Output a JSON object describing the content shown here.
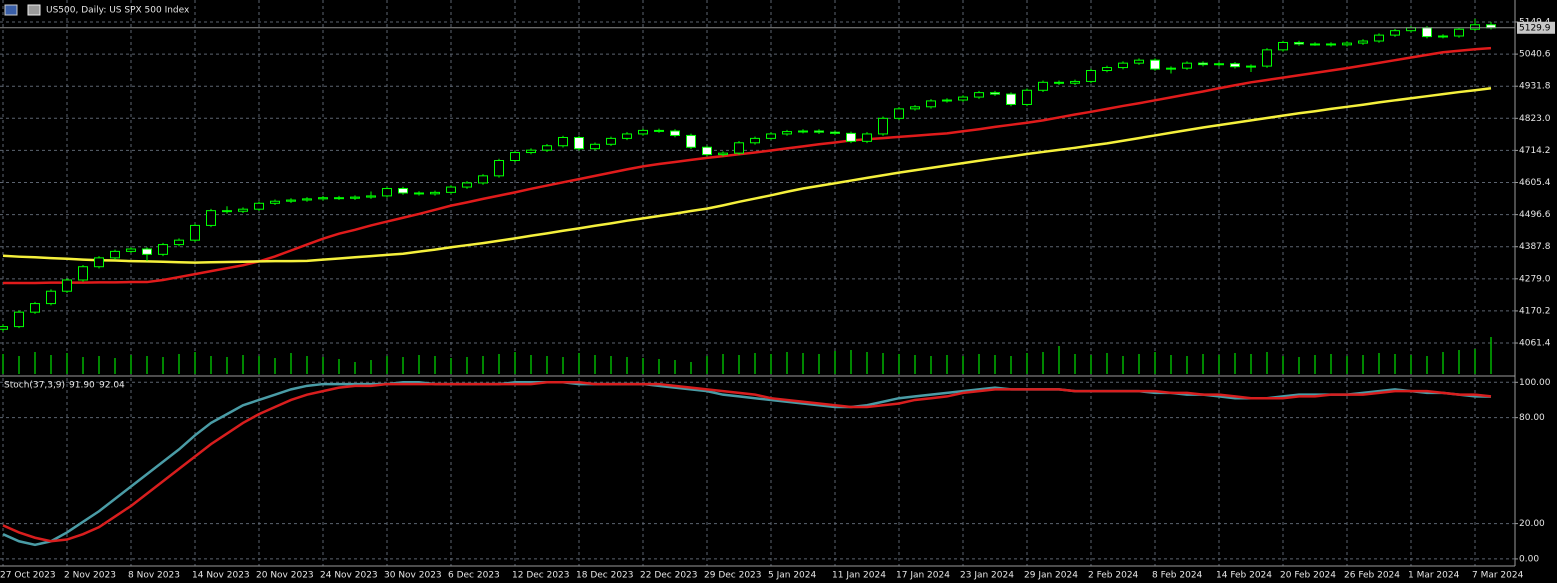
{
  "chart_data": [
    {
      "type": "candlestick",
      "title": "US500, Daily: US SPX 500 Index",
      "categories": [
        "27 Oct 2023",
        null,
        null,
        null,
        "2 Nov 2023",
        null,
        null,
        null,
        "8 Nov 2023",
        null,
        null,
        null,
        "14 Nov 2023",
        null,
        null,
        null,
        "20 Nov 2023",
        null,
        null,
        null,
        "24 Nov 2023",
        null,
        null,
        null,
        "30 Nov 2023",
        null,
        null,
        null,
        "6 Dec 2023",
        null,
        null,
        null,
        "12 Dec 2023",
        null,
        null,
        null,
        "18 Dec 2023",
        null,
        null,
        null,
        "22 Dec 2023",
        null,
        null,
        null,
        "29 Dec 2023",
        null,
        null,
        null,
        "5 Jan 2024",
        null,
        null,
        null,
        "11 Jan 2024",
        null,
        null,
        null,
        "17 Jan 2024",
        null,
        null,
        null,
        "23 Jan 2024",
        null,
        null,
        null,
        "29 Jan 2024",
        null,
        null,
        null,
        "2 Feb 2024",
        null,
        null,
        null,
        "8 Feb 2024",
        null,
        null,
        null,
        "14 Feb 2024",
        null,
        null,
        null,
        "20 Feb 2024",
        null,
        null,
        null,
        "26 Feb 2024",
        null,
        null,
        null,
        "1 Mar 2024",
        null,
        null,
        null,
        "7 Mar 2024",
        null
      ],
      "open": [
        4108,
        4117,
        4166,
        4195,
        4237,
        4275,
        4320,
        4350,
        4372,
        4380,
        4362,
        4395,
        4410,
        4460,
        4510,
        4508,
        4515,
        4535,
        4542,
        4546,
        4550,
        4554,
        4552,
        4556,
        4560,
        4585,
        4570,
        4567,
        4572,
        4590,
        4604,
        4628,
        4680,
        4707,
        4715,
        4730,
        4758,
        4720,
        4735,
        4755,
        4770,
        4782,
        4780,
        4765,
        4725,
        4700,
        4705,
        4740,
        4755,
        4770,
        4778,
        4780,
        4776,
        4772,
        4745,
        4770,
        4823,
        4855,
        4862,
        4882,
        4885,
        4895,
        4910,
        4905,
        4870,
        4918,
        4945,
        4942,
        4948,
        4985,
        4995,
        5010,
        5020,
        4990,
        4993,
        5010,
        5005,
        5008,
        4998,
        5000,
        5055,
        5080,
        5075,
        5075,
        5072,
        5078,
        5085,
        5105,
        5120,
        5130,
        5100,
        5102,
        5125,
        5140
      ],
      "high": [
        4125,
        4172,
        4201,
        4243,
        4281,
        4326,
        4356,
        4378,
        4386,
        4386,
        4401,
        4416,
        4466,
        4516,
        4525,
        4521,
        4541,
        4548,
        4552,
        4556,
        4560,
        4560,
        4562,
        4575,
        4591,
        4591,
        4576,
        4578,
        4596,
        4610,
        4634,
        4686,
        4713,
        4721,
        4736,
        4764,
        4764,
        4741,
        4761,
        4776,
        4788,
        4788,
        4786,
        4771,
        4731,
        4711,
        4746,
        4761,
        4776,
        4784,
        4786,
        4786,
        4782,
        4778,
        4776,
        4829,
        4861,
        4868,
        4888,
        4891,
        4901,
        4916,
        4916,
        4911,
        4924,
        4951,
        4951,
        4954,
        4991,
        5001,
        5016,
        5026,
        5026,
        4999,
        5016,
        5016,
        5014,
        5014,
        5006,
        5061,
        5086,
        5086,
        5081,
        5081,
        5084,
        5091,
        5111,
        5126,
        5136,
        5136,
        5108,
        5131,
        5160,
        5150
      ],
      "low": [
        4100,
        4112,
        4160,
        4189,
        4231,
        4269,
        4314,
        4344,
        4366,
        4340,
        4356,
        4389,
        4404,
        4454,
        4500,
        4502,
        4509,
        4529,
        4536,
        4540,
        4544,
        4546,
        4546,
        4550,
        4554,
        4564,
        4561,
        4561,
        4566,
        4584,
        4598,
        4622,
        4674,
        4701,
        4709,
        4724,
        4714,
        4714,
        4729,
        4749,
        4764,
        4774,
        4759,
        4719,
        4694,
        4694,
        4699,
        4734,
        4749,
        4764,
        4772,
        4770,
        4766,
        4739,
        4739,
        4764,
        4817,
        4849,
        4856,
        4876,
        4879,
        4889,
        4899,
        4864,
        4864,
        4912,
        4936,
        4936,
        4942,
        4979,
        4989,
        5004,
        4984,
        4975,
        4987,
        4999,
        4999,
        4992,
        4980,
        4994,
        5049,
        5069,
        5069,
        5066,
        5066,
        5072,
        5079,
        5099,
        5114,
        5094,
        5094,
        5096,
        5119,
        5124
      ],
      "close": [
        4117,
        4166,
        4195,
        4237,
        4275,
        4320,
        4350,
        4372,
        4380,
        4362,
        4395,
        4410,
        4460,
        4510,
        4508,
        4515,
        4535,
        4542,
        4546,
        4550,
        4554,
        4552,
        4556,
        4560,
        4585,
        4570,
        4567,
        4572,
        4590,
        4604,
        4628,
        4680,
        4707,
        4715,
        4730,
        4758,
        4720,
        4735,
        4755,
        4770,
        4782,
        4780,
        4765,
        4725,
        4700,
        4705,
        4740,
        4755,
        4770,
        4778,
        4780,
        4776,
        4772,
        4745,
        4770,
        4823,
        4855,
        4862,
        4882,
        4885,
        4895,
        4910,
        4905,
        4870,
        4918,
        4945,
        4942,
        4948,
        4985,
        4995,
        5010,
        5020,
        4990,
        4993,
        5010,
        5005,
        5008,
        4998,
        5000,
        5055,
        5080,
        5075,
        5075,
        5072,
        5078,
        5085,
        5105,
        5120,
        5130,
        5100,
        5102,
        5125,
        5140,
        5129.9
      ],
      "up_color": "#000000",
      "down_color": "#ffffff",
      "outline_color": "#00ff00",
      "lines": [
        {
          "color": "#e01b1b",
          "values": [
            4265,
            4265,
            4265,
            4266,
            4266,
            4266,
            4267,
            4267,
            4268,
            4268,
            4275,
            4285,
            4295,
            4305,
            4315,
            4325,
            4338,
            4355,
            4375,
            4395,
            4415,
            4432,
            4445,
            4460,
            4473,
            4486,
            4499,
            4513,
            4527,
            4538,
            4550,
            4561,
            4572,
            4584,
            4595,
            4606,
            4617,
            4628,
            4639,
            4650,
            4660,
            4668,
            4675,
            4682,
            4689,
            4695,
            4701,
            4707,
            4714,
            4721,
            4728,
            4735,
            4741,
            4748,
            4752,
            4756,
            4760,
            4764,
            4768,
            4772,
            4779,
            4786,
            4794,
            4801,
            4808,
            4816,
            4826,
            4836,
            4845,
            4855,
            4865,
            4874,
            4884,
            4894,
            4904,
            4914,
            4925,
            4935,
            4945,
            4953,
            4961,
            4969,
            4977,
            4985,
            4993,
            5002,
            5011,
            5020,
            5029,
            5038,
            5047,
            5052,
            5057,
            5061
          ]
        },
        {
          "color": "#f5f03c",
          "values": [
            4357,
            4354,
            4352,
            4349,
            4347,
            4344,
            4342,
            4341,
            4339,
            4338,
            4337,
            4335,
            4334,
            4335,
            4336,
            4337,
            4338,
            4339,
            4339,
            4340,
            4344,
            4348,
            4352,
            4356,
            4360,
            4364,
            4371,
            4378,
            4386,
            4393,
            4400,
            4408,
            4416,
            4425,
            4433,
            4442,
            4450,
            4459,
            4467,
            4476,
            4484,
            4492,
            4500,
            4509,
            4517,
            4528,
            4540,
            4551,
            4562,
            4574,
            4585,
            4594,
            4603,
            4612,
            4621,
            4630,
            4639,
            4647,
            4655,
            4663,
            4671,
            4679,
            4687,
            4694,
            4702,
            4709,
            4716,
            4723,
            4731,
            4738,
            4747,
            4756,
            4765,
            4774,
            4783,
            4792,
            4800,
            4808,
            4816,
            4824,
            4832,
            4840,
            4847,
            4855,
            4862,
            4869,
            4877,
            4884,
            4891,
            4898,
            4905,
            4912,
            4918,
            4925
          ]
        }
      ],
      "volume": {
        "color": "#00b400",
        "values": [
          20,
          18,
          22,
          19,
          21,
          17,
          18,
          16,
          19,
          18,
          17,
          20,
          22,
          18,
          17,
          19,
          18,
          16,
          21,
          18,
          17,
          15,
          12,
          14,
          18,
          17,
          19,
          18,
          16,
          17,
          18,
          20,
          22,
          19,
          18,
          17,
          21,
          19,
          18,
          17,
          16,
          15,
          14,
          12,
          18,
          20,
          19,
          21,
          20,
          22,
          21,
          20,
          23,
          24,
          22,
          21,
          20,
          19,
          18,
          19,
          18,
          20,
          19,
          18,
          21,
          22,
          28,
          20,
          19,
          21,
          18,
          20,
          22,
          19,
          18,
          20,
          19,
          21,
          20,
          22,
          18,
          17,
          19,
          20,
          18,
          19,
          21,
          20,
          19,
          18,
          22,
          24,
          25,
          37
        ]
      },
      "ylim": [
        3953,
        5224
      ],
      "yticks": [
        4061.4,
        4170.2,
        {
          "value": 4279,
          "label": "4279.0"
        },
        4387.8,
        4496.6,
        4605.4,
        4714.2,
        {
          "value": 4823,
          "label": "4823.0"
        },
        4931.8,
        5040.6,
        5149.4
      ],
      "grid": true
    },
    {
      "type": "line",
      "title": "Stoch(37,3,9)",
      "series": [
        {
          "color": "#4a9ca6",
          "values": [
            14,
            10,
            8,
            10,
            15,
            21,
            27,
            34,
            41,
            48,
            55,
            62,
            70,
            77,
            82,
            87,
            90,
            93,
            96,
            98,
            99,
            99,
            99,
            99,
            99,
            100,
            100,
            99,
            99,
            99,
            99,
            99,
            100,
            100,
            100,
            100,
            99,
            99,
            99,
            99,
            99,
            98,
            97,
            96,
            95,
            93,
            92,
            91,
            90,
            89,
            88,
            87,
            86,
            86,
            87,
            89,
            91,
            92,
            93,
            94,
            95,
            96,
            97,
            96,
            96,
            96,
            96,
            95,
            95,
            95,
            95,
            95,
            94,
            94,
            93,
            93,
            92,
            91,
            91,
            91,
            92,
            93,
            93,
            93,
            93,
            94,
            95,
            96,
            95,
            94,
            94,
            93,
            92,
            91.9
          ],
          "value_labels": [
            null,
            null,
            null,
            null,
            null,
            null,
            null,
            null,
            null,
            null,
            null,
            null,
            null,
            null,
            null,
            null,
            null,
            null,
            null,
            null,
            null,
            null,
            null,
            null,
            null,
            null,
            null,
            null,
            null,
            null,
            null,
            null,
            null,
            null,
            null,
            null,
            null,
            null,
            null,
            null,
            null,
            null,
            null,
            null,
            null,
            null,
            null,
            null,
            null,
            null,
            null,
            null,
            null,
            null,
            null,
            null,
            null,
            null,
            null,
            null,
            null,
            null,
            null,
            null,
            null,
            null,
            null,
            null,
            null,
            null,
            null,
            null,
            null,
            null,
            null,
            null,
            null,
            null,
            null,
            null,
            null,
            null,
            null,
            null,
            null,
            null,
            null,
            null,
            null,
            null,
            null,
            null,
            null,
            "91.90"
          ]
        },
        {
          "color": "#d81e1e",
          "values": [
            19,
            15,
            12,
            10,
            11,
            14,
            18,
            24,
            30,
            37,
            44,
            51,
            58,
            65,
            71,
            77,
            82,
            86,
            90,
            93,
            95,
            97,
            98,
            98,
            99,
            99,
            99,
            99,
            99,
            99,
            99,
            99,
            99,
            99,
            100,
            100,
            100,
            99,
            99,
            99,
            99,
            99,
            98,
            97,
            96,
            95,
            94,
            93,
            91,
            90,
            89,
            88,
            87,
            86,
            86,
            87,
            88,
            90,
            91,
            92,
            94,
            95,
            96,
            96,
            96,
            96,
            96,
            95,
            95,
            95,
            95,
            95,
            95,
            94,
            94,
            93,
            93,
            92,
            91,
            91,
            91,
            92,
            92,
            93,
            93,
            93,
            94,
            95,
            95,
            95,
            94,
            93,
            93,
            92.04
          ],
          "value_labels": [
            null,
            null,
            null,
            null,
            null,
            null,
            null,
            null,
            null,
            null,
            null,
            null,
            null,
            null,
            null,
            null,
            null,
            null,
            null,
            null,
            null,
            null,
            null,
            null,
            null,
            null,
            null,
            null,
            null,
            null,
            null,
            null,
            null,
            null,
            null,
            null,
            null,
            null,
            null,
            null,
            null,
            null,
            null,
            null,
            null,
            null,
            null,
            null,
            null,
            null,
            null,
            null,
            null,
            null,
            null,
            null,
            null,
            null,
            null,
            null,
            null,
            null,
            null,
            null,
            null,
            null,
            null,
            null,
            null,
            null,
            null,
            null,
            null,
            null,
            null,
            null,
            null,
            null,
            null,
            null,
            null,
            null,
            null,
            null,
            null,
            null,
            null,
            null,
            null,
            null,
            null,
            null,
            null,
            "92.04"
          ]
        }
      ],
      "ylim": [
        -4,
        103
      ],
      "yticks": [
        {
          "value": 0,
          "label": "0.00"
        },
        {
          "value": 20,
          "label": "20.00"
        },
        {
          "value": 80,
          "label": "80.00"
        },
        {
          "value": 100,
          "label": "100.00"
        }
      ],
      "grid": true
    }
  ]
}
